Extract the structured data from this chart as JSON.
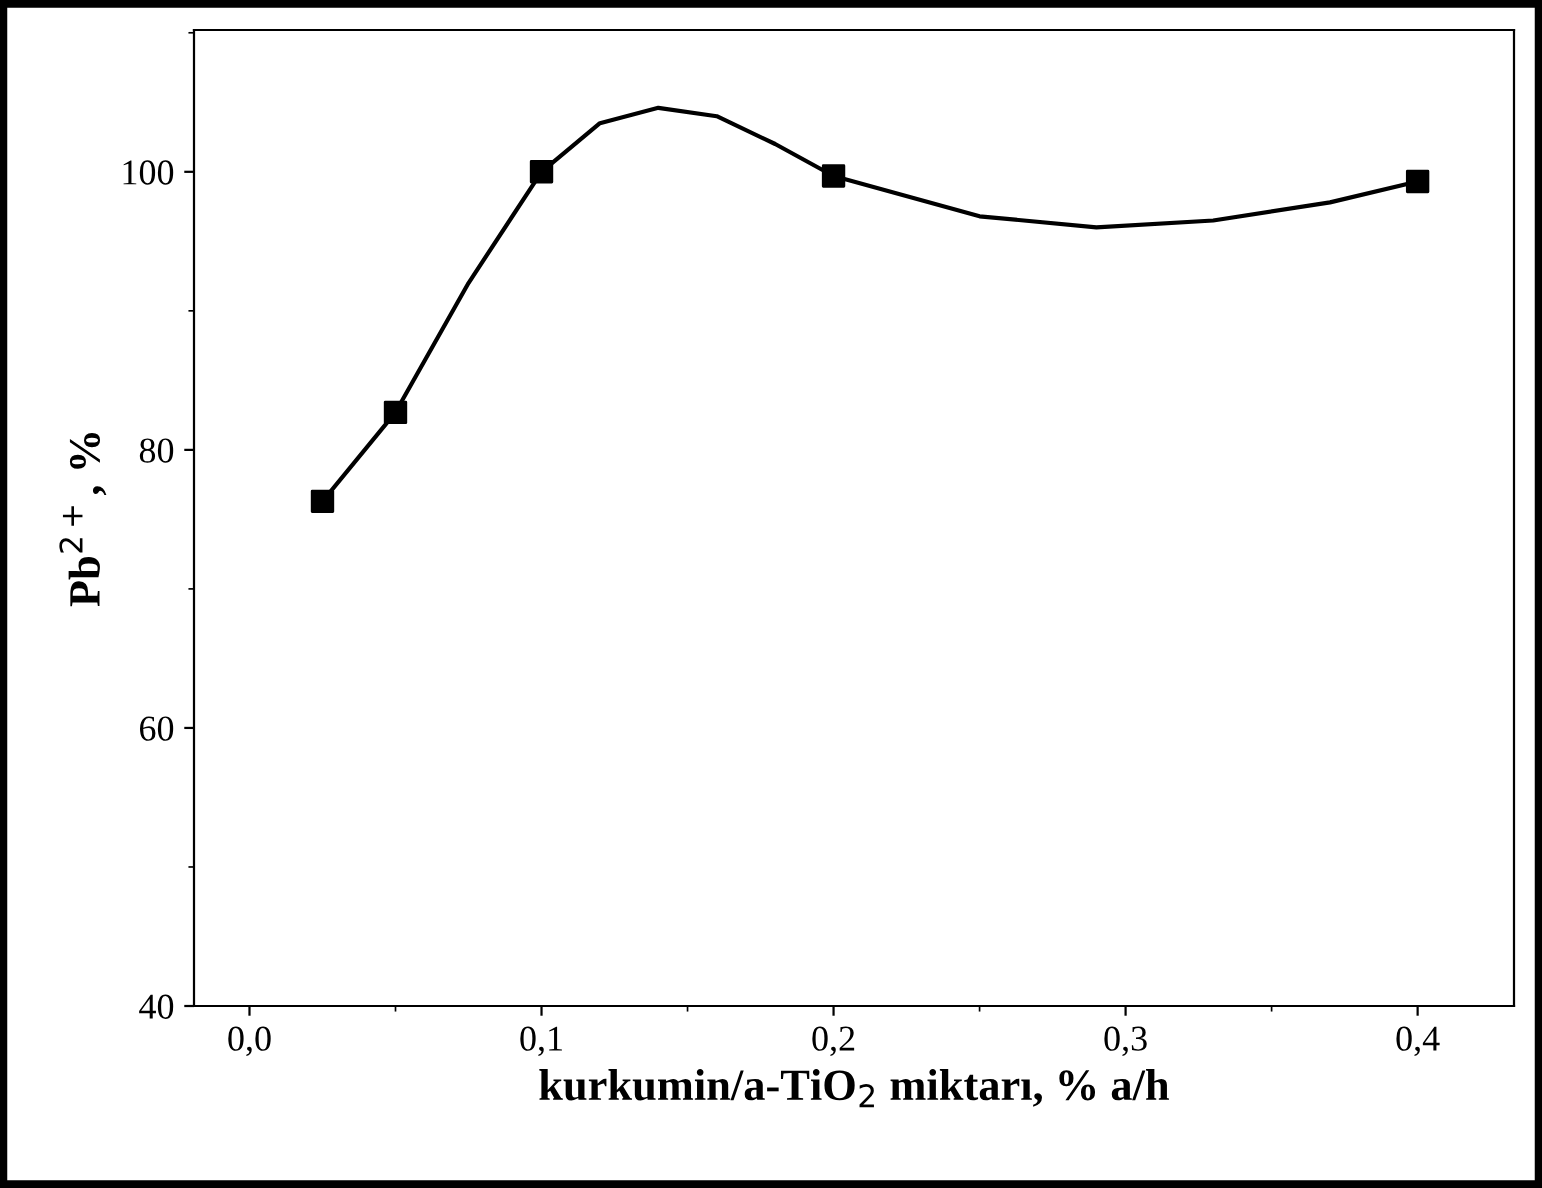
{
  "chart_data": {
    "type": "scatter",
    "xlabel": "kurkumin/a-TiO$_{2}$ miktarı, % a/h",
    "ylabel": "Pb$^{2+}$, %",
    "series": [
      {
        "type": "line",
        "color": "#000000",
        "marker": "none",
        "x": [
          0.025,
          0.05,
          0.075,
          0.1,
          0.12,
          0.14,
          0.16,
          0.18,
          0.2,
          0.25,
          0.29,
          0.33,
          0.37,
          0.4
        ],
        "values": [
          76.3,
          82.7,
          92,
          100,
          103.5,
          104.6,
          104,
          102,
          99.7,
          96.8,
          96,
          96.5,
          97.8,
          99.3
        ]
      },
      {
        "color": "#000000",
        "marker": "square",
        "x": [
          0.025,
          0.05,
          0.1,
          0.2,
          0.4
        ],
        "values": [
          76.3,
          82.7,
          100,
          99.7,
          99.3
        ]
      }
    ],
    "xlim": [
      -0.019,
      0.433
    ],
    "ylim": [
      40,
      110.2
    ],
    "xticks": [
      {
        "value": 0,
        "label": "0,0"
      },
      {
        "value": 0.1,
        "label": "0,1"
      },
      {
        "value": 0.2,
        "label": "0,2"
      },
      {
        "value": 0.3,
        "label": "0,3"
      },
      {
        "value": 0.4,
        "label": "0,4"
      }
    ],
    "yticks": [
      40,
      60,
      80,
      100
    ],
    "grid": false,
    "legend": false
  }
}
